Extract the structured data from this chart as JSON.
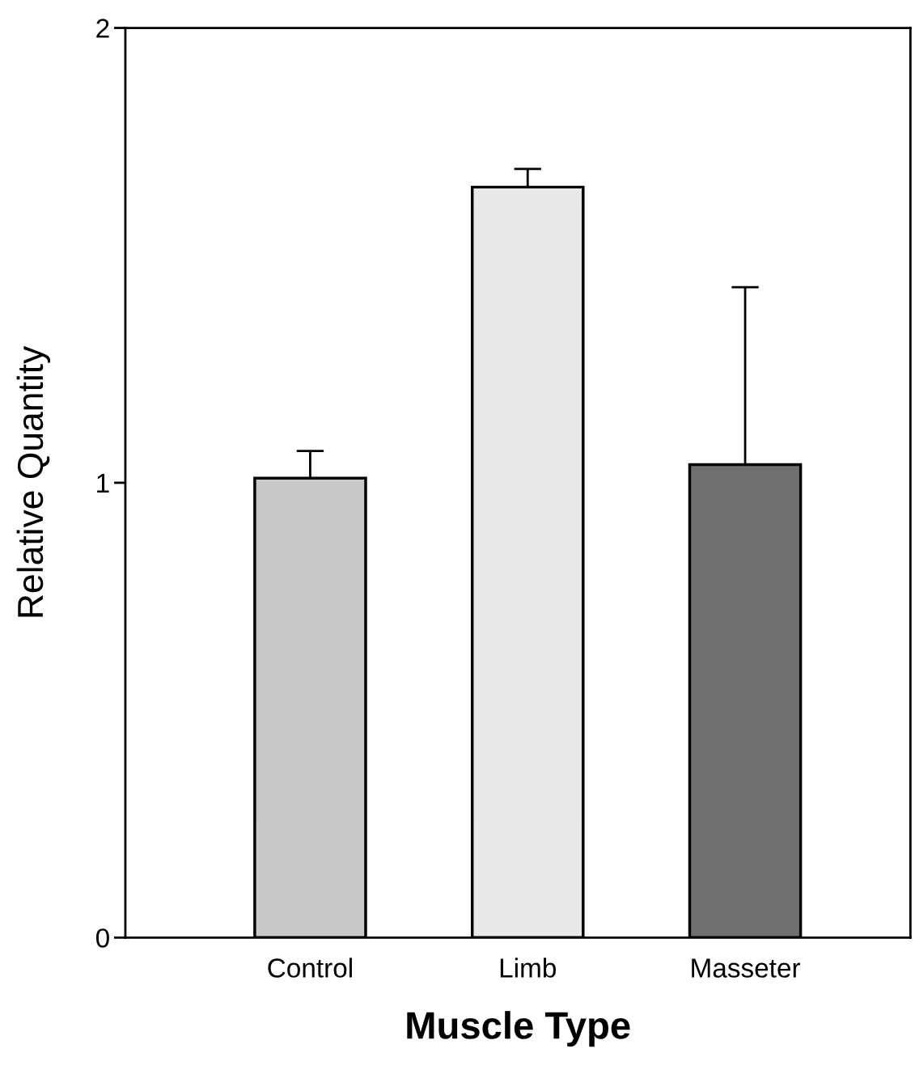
{
  "chart_data": {
    "type": "bar",
    "xlabel": "Muscle Type",
    "ylabel": "Relative Quantity",
    "categories": [
      "Control",
      "Limb",
      "Masseter"
    ],
    "values": [
      1.01,
      1.65,
      1.04
    ],
    "colors": [
      "#c8c8c8",
      "#e8e8e8",
      "#707070"
    ],
    "errors": [
      [
        1.01,
        1.07
      ],
      [
        1.65,
        1.69
      ],
      [
        1.04,
        1.43
      ]
    ],
    "ylim": [
      0,
      2
    ],
    "yticks": [
      0,
      1,
      2
    ],
    "grid": false,
    "legend": false
  }
}
